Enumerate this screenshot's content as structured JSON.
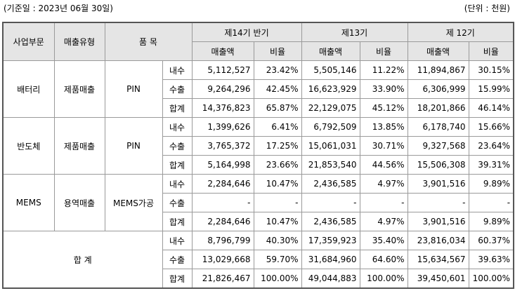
{
  "header": {
    "basis_date": "(기준일 : 2023년 06월 30일)",
    "unit": "(단위 : 천원)"
  },
  "table": {
    "headers": {
      "segment": "사업부문",
      "sales_type": "매출유형",
      "item": "품 목",
      "periods": [
        "제14기 반기",
        "제13기",
        "제 12기"
      ],
      "amount": "매출액",
      "ratio": "비율"
    },
    "groups": [
      {
        "segment": "배터리",
        "sales_type": "제품매출",
        "item": "PIN",
        "rows": [
          {
            "kind": "내수",
            "cells": [
              "5,112,527",
              "23.42%",
              "5,505,146",
              "11.22%",
              "11,894,867",
              "30.15%"
            ]
          },
          {
            "kind": "수출",
            "cells": [
              "9,264,296",
              "42.45%",
              "16,623,929",
              "33.90%",
              "6,306,999",
              "15.99%"
            ]
          },
          {
            "kind": "합계",
            "cells": [
              "14,376,823",
              "65.87%",
              "22,129,075",
              "45.12%",
              "18,201,866",
              "46.14%"
            ]
          }
        ]
      },
      {
        "segment": "반도체",
        "sales_type": "제품매출",
        "item": "PIN",
        "rows": [
          {
            "kind": "내수",
            "cells": [
              "1,399,626",
              "6.41%",
              "6,792,509",
              "13.85%",
              "6,178,740",
              "15.66%"
            ]
          },
          {
            "kind": "수출",
            "cells": [
              "3,765,372",
              "17.25%",
              "15,061,031",
              "30.71%",
              "9,327,568",
              "23.64%"
            ]
          },
          {
            "kind": "합계",
            "cells": [
              "5,164,998",
              "23.66%",
              "21,853,540",
              "44.56%",
              "15,506,308",
              "39.31%"
            ]
          }
        ]
      },
      {
        "segment": "MEMS",
        "sales_type": "용역매출",
        "item": "MEMS가공",
        "rows": [
          {
            "kind": "내수",
            "cells": [
              "2,284,646",
              "10.47%",
              "2,436,585",
              "4.97%",
              "3,901,516",
              "9.89%"
            ]
          },
          {
            "kind": "수출",
            "cells": [
              "-",
              "-",
              "-",
              "-",
              "-",
              "-"
            ]
          },
          {
            "kind": "합계",
            "cells": [
              "2,284,646",
              "10.47%",
              "2,436,585",
              "4.97%",
              "3,901,516",
              "9.89%"
            ]
          }
        ]
      }
    ],
    "total": {
      "label": "합 계",
      "rows": [
        {
          "kind": "내수",
          "cells": [
            "8,796,799",
            "40.30%",
            "17,359,923",
            "35.40%",
            "23,816,034",
            "60.37%"
          ]
        },
        {
          "kind": "수출",
          "cells": [
            "13,029,668",
            "59.70%",
            "31,684,960",
            "64.60%",
            "15,634,567",
            "39.63%"
          ]
        },
        {
          "kind": "합계",
          "cells": [
            "21,826,467",
            "100.00%",
            "49,044,883",
            "100.00%",
            "39,450,601",
            "100.00%"
          ]
        }
      ]
    }
  }
}
